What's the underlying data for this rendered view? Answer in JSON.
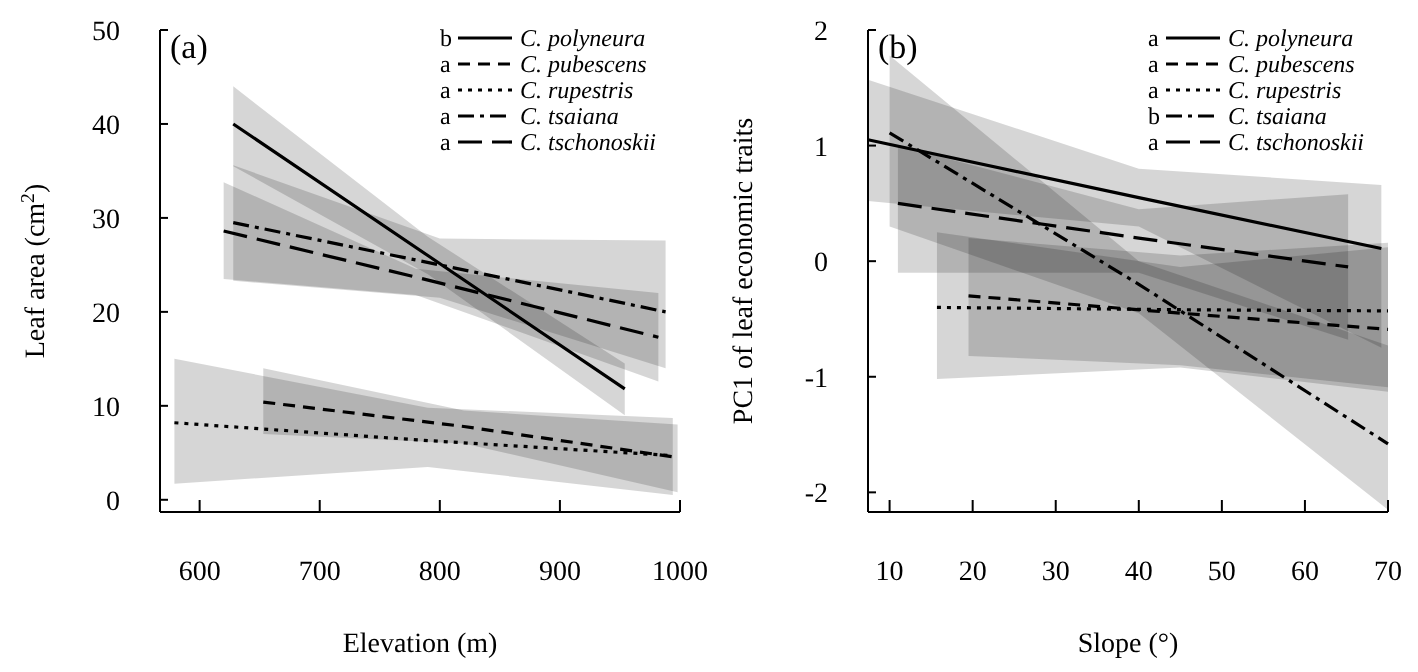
{
  "chart_data": [
    {
      "type": "line",
      "title": "(a)",
      "xlabel": "Elevation (m)",
      "ylabel": "Leaf area (cm$^{2}$)",
      "xlim": [
        567,
        1000
      ],
      "xticks": [
        600,
        700,
        800,
        900,
        1000
      ],
      "ylim": [
        -1.3,
        50
      ],
      "yticks": [
        0,
        10,
        20,
        30,
        40,
        50
      ],
      "legend": "top right",
      "grid": false,
      "annotations": [
        "b",
        "a",
        "a",
        "a",
        "a"
      ],
      "series": [
        {
          "name": "C. polyneura",
          "color": "#000000",
          "line_style": "solid",
          "x": [
            628,
            790,
            954
          ],
          "values": [
            40,
            26,
            11.8
          ],
          "upper": [
            44,
            28,
            14.5
          ],
          "lower": [
            35.5,
            24,
            9
          ]
        },
        {
          "name": "C. pubescens",
          "color": "#000000",
          "line_style": "dashed",
          "x": [
            653,
            820,
            998
          ],
          "values": [
            10.4,
            7.8,
            4.5
          ],
          "upper": [
            14,
            9.5,
            8
          ],
          "lower": [
            7,
            6,
            0.8
          ]
        },
        {
          "name": "C. rupestris",
          "color": "#000000",
          "line_style": "dotted",
          "x": [
            579,
            790,
            994
          ],
          "values": [
            8.2,
            6.3,
            4.7
          ],
          "upper": [
            15,
            9.8,
            8.7
          ],
          "lower": [
            1.7,
            3.5,
            0.5
          ]
        },
        {
          "name": "C. tsaiana",
          "color": "#000000",
          "line_style": "dashdot",
          "x": [
            628,
            800,
            988
          ],
          "values": [
            29.5,
            25,
            20
          ],
          "upper": [
            35.6,
            27.8,
            27.6
          ],
          "lower": [
            23.3,
            21.5,
            14
          ]
        },
        {
          "name": "C. tschonoskii",
          "color": "#000000",
          "line_style": "longdash",
          "x": [
            620,
            780,
            982
          ],
          "values": [
            28.6,
            23.7,
            17.3
          ],
          "upper": [
            33.8,
            24.6,
            22
          ],
          "lower": [
            23.5,
            21.8,
            12.6
          ]
        }
      ]
    },
    {
      "type": "line",
      "title": "(b)",
      "xlabel": "Slope (°)",
      "ylabel": "PC1 of leaf economic traits",
      "xlim": [
        7.4,
        70
      ],
      "xticks": [
        10,
        20,
        30,
        40,
        50,
        60,
        70
      ],
      "ylim": [
        -2.17,
        2
      ],
      "yticks": [
        -2,
        -1,
        0,
        1,
        2
      ],
      "legend": "top right",
      "grid": false,
      "annotations": [
        "a",
        "a",
        "a",
        "b",
        "a"
      ],
      "series": [
        {
          "name": "C. polyneura",
          "color": "#000000",
          "line_style": "solid",
          "x": [
            7.4,
            40,
            69.2
          ],
          "values": [
            1.05,
            0.55,
            0.11
          ],
          "upper": [
            1.57,
            0.8,
            0.66
          ],
          "lower": [
            0.52,
            0.3,
            -0.75
          ]
        },
        {
          "name": "C. pubescens",
          "color": "#000000",
          "line_style": "dashed",
          "x": [
            19.5,
            45,
            70
          ],
          "values": [
            -0.3,
            -0.45,
            -0.59
          ],
          "upper": [
            0.2,
            0.05,
            0.16
          ],
          "lower": [
            -0.82,
            -0.9,
            -1.09
          ]
        },
        {
          "name": "C. rupestris",
          "color": "#000000",
          "line_style": "dotted",
          "x": [
            15.7,
            45,
            70
          ],
          "values": [
            -0.4,
            -0.42,
            -0.43
          ],
          "upper": [
            0.25,
            -0.05,
            0.12
          ],
          "lower": [
            -1.02,
            -0.92,
            -1.13
          ]
        },
        {
          "name": "C. tsaiana",
          "color": "#000000",
          "line_style": "dashdot",
          "x": [
            10,
            40,
            70
          ],
          "values": [
            1.11,
            -0.2,
            -1.58
          ],
          "upper": [
            1.78,
            0,
            -0.73
          ],
          "lower": [
            0.3,
            -0.45,
            -2.15
          ]
        },
        {
          "name": "C. tschonoskii",
          "color": "#000000",
          "line_style": "longdash",
          "x": [
            11,
            40,
            65.2
          ],
          "values": [
            0.5,
            0.2,
            -0.05
          ],
          "upper": [
            1.0,
            0.45,
            0.58
          ],
          "lower": [
            -0.1,
            -0.1,
            -0.68
          ]
        }
      ]
    }
  ]
}
